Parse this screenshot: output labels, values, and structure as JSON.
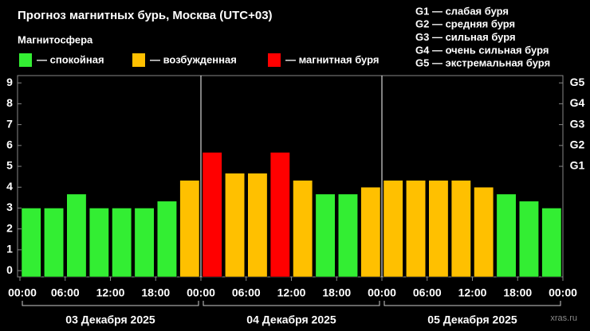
{
  "chart_data": {
    "type": "bar",
    "title": "Прогноз магнитных бурь, Москва (UTC+03)",
    "legend_title": "Магнитосфера",
    "legend": [
      {
        "label": "— спокойная",
        "color": "#33ee33"
      },
      {
        "label": "— возбужденная",
        "color": "#ffc000"
      },
      {
        "label": "— магнитная буря",
        "color": "#ff0000"
      }
    ],
    "scale_notes": [
      "G1 — слабая буря",
      "G2 — средняя буря",
      "G3 — сильная буря",
      "G4 — очень сильная буря",
      "G5 — экстремальная буря"
    ],
    "x": [
      0,
      3,
      6,
      9,
      12,
      15,
      18,
      21,
      24,
      27,
      30,
      33,
      36,
      39,
      42,
      45,
      48,
      51,
      54,
      57,
      60,
      63,
      66,
      69
    ],
    "values": [
      3.0,
      3.0,
      3.67,
      3.0,
      3.0,
      3.0,
      3.33,
      4.33,
      5.67,
      4.67,
      4.67,
      5.67,
      4.33,
      3.67,
      3.67,
      4.0,
      4.33,
      4.33,
      4.33,
      4.33,
      4.0,
      3.67,
      3.33,
      3.0
    ],
    "colors": [
      "#33ee33",
      "#33ee33",
      "#33ee33",
      "#33ee33",
      "#33ee33",
      "#33ee33",
      "#33ee33",
      "#ffc000",
      "#ff0000",
      "#ffc000",
      "#ffc000",
      "#ff0000",
      "#ffc000",
      "#33ee33",
      "#33ee33",
      "#ffc000",
      "#ffc000",
      "#ffc000",
      "#ffc000",
      "#ffc000",
      "#ffc000",
      "#33ee33",
      "#33ee33",
      "#33ee33"
    ],
    "xlim": [
      0,
      72
    ],
    "xticks": [
      {
        "value": 0,
        "label": "00:00"
      },
      {
        "value": 6,
        "label": "06:00"
      },
      {
        "value": 12,
        "label": "12:00"
      },
      {
        "value": 18,
        "label": "18:00"
      },
      {
        "value": 24,
        "label": "00:00"
      },
      {
        "value": 30,
        "label": "06:00"
      },
      {
        "value": 36,
        "label": "12:00"
      },
      {
        "value": 42,
        "label": "18:00"
      },
      {
        "value": 48,
        "label": "00:00"
      },
      {
        "value": 54,
        "label": "06:00"
      },
      {
        "value": 60,
        "label": "12:00"
      },
      {
        "value": 66,
        "label": "18:00"
      },
      {
        "value": 72,
        "label": "00:00"
      }
    ],
    "days": [
      "03 Декабря 2025",
      "04 Декабря 2025",
      "05 Декабря 2025"
    ],
    "ylim": [
      -0.3,
      9.35
    ],
    "yticks": [
      0,
      1,
      2,
      3,
      4,
      5,
      6,
      7,
      8,
      9
    ],
    "y2ticks": [
      {
        "value": 5,
        "label": "G1"
      },
      {
        "value": 6,
        "label": "G2"
      },
      {
        "value": 7,
        "label": "G3"
      },
      {
        "value": 8,
        "label": "G4"
      },
      {
        "value": 9,
        "label": "G5"
      }
    ],
    "watermark": "xras.ru"
  }
}
